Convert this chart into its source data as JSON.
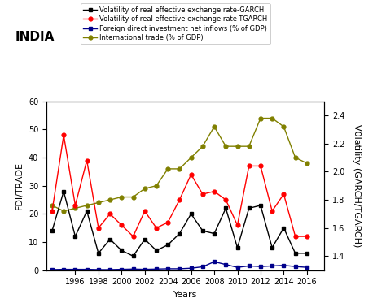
{
  "title": "INDIA",
  "xlabel": "Years",
  "ylabel_left": "FDI/TRADE",
  "ylabel_right": "V0latility (GARCH/TGARCH)",
  "years": [
    1994,
    1995,
    1996,
    1997,
    1998,
    1999,
    2000,
    2001,
    2002,
    2003,
    2004,
    2005,
    2006,
    2007,
    2008,
    2009,
    2010,
    2011,
    2012,
    2013,
    2014,
    2015,
    2016
  ],
  "garch": [
    14,
    28,
    12,
    21,
    6,
    11,
    7,
    5,
    11,
    7,
    9,
    13,
    20,
    14,
    13,
    22,
    8,
    22,
    23,
    8,
    15,
    6,
    6
  ],
  "tgarch": [
    21,
    48,
    23,
    39,
    15,
    20,
    16,
    12,
    21,
    15,
    17,
    25,
    34,
    27,
    28,
    25,
    16,
    37,
    37,
    21,
    27,
    12,
    12
  ],
  "fdi": [
    0.2,
    0.3,
    0.3,
    0.3,
    0.2,
    0.2,
    0.3,
    0.4,
    0.3,
    0.4,
    0.5,
    0.5,
    0.7,
    1.2,
    3.0,
    2.0,
    1.0,
    1.5,
    1.3,
    1.5,
    1.7,
    1.3,
    1.0
  ],
  "trade": [
    23,
    21,
    22,
    23,
    24,
    25,
    26,
    26,
    29,
    30,
    36,
    36,
    40,
    44,
    51,
    44,
    44,
    44,
    54,
    54,
    51,
    40,
    38
  ],
  "garch_color": "#000000",
  "tgarch_color": "#ff0000",
  "fdi_color": "#00008b",
  "trade_color": "#808000",
  "ylim_left": [
    0,
    60
  ],
  "ylim_right": [
    1.3,
    2.5
  ],
  "xtick_labels": [
    "1996",
    "1998",
    "2000",
    "2002",
    "2004",
    "2006",
    "2008",
    "2010",
    "2012",
    "2014",
    "2016"
  ],
  "xtick_positions": [
    1996,
    1998,
    2000,
    2002,
    2004,
    2006,
    2008,
    2010,
    2012,
    2014,
    2016
  ],
  "legend_labels": [
    "Volatility of real effective exchange rate-GARCH",
    "Volatility of real effective exchange rate-TGARCH",
    "Foreign direct investment net inflows (% of GDP)",
    "International trade (% of GDP)"
  ]
}
